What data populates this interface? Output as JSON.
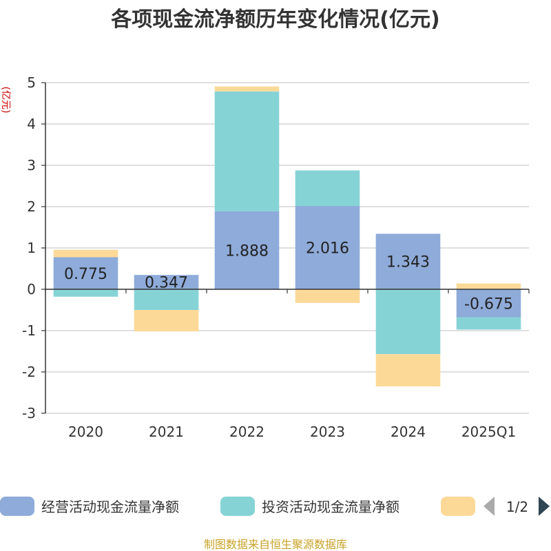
{
  "chart_data": {
    "type": "bar",
    "stacked": true,
    "title": "各项现金流净额历年变化情况(亿元)",
    "ylabel": "(亿元)",
    "ylim": [
      -3,
      5
    ],
    "yticks": [
      "5",
      "4",
      "3",
      "2",
      "1",
      "0",
      "-1",
      "-2",
      "-3"
    ],
    "grid": true,
    "categories": [
      "2020",
      "2021",
      "2022",
      "2023",
      "2024",
      "2025Q1"
    ],
    "series": [
      {
        "name": "经营活动现金流量净额",
        "color": "#8eabd9",
        "values": [
          0.775,
          0.347,
          1.888,
          2.016,
          1.343,
          -0.675
        ],
        "labels": [
          "0.775",
          "0.347",
          "1.888",
          "2.016",
          "1.343",
          "-0.675"
        ]
      },
      {
        "name": "投资活动现金流量净额",
        "color": "#86d3d6",
        "values": [
          -0.18,
          -0.5,
          2.9,
          0.86,
          -1.57,
          -0.3
        ]
      },
      {
        "name": "",
        "color": "#fdd998",
        "values": [
          0.18,
          -0.52,
          0.12,
          -0.33,
          -0.78,
          0.14
        ]
      }
    ],
    "legend_position": "bottom",
    "legend_page": "1/2"
  },
  "source": "制图数据来自恒生聚源数据库"
}
